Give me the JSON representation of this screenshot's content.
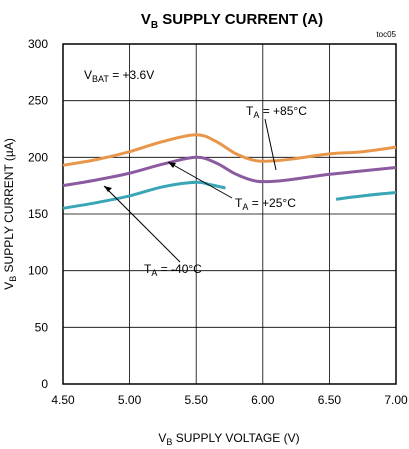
{
  "chart_data": {
    "type": "line",
    "title": {
      "main": "V",
      "sub": "B",
      "rest": " SUPPLY CURRENT (A)"
    },
    "corner_label": "toc05",
    "xlabel": {
      "main": "V",
      "sub": "B",
      "rest": " SUPPLY VOLTAGE (V)"
    },
    "ylabel": {
      "main": "V",
      "sub": "B",
      "rest": " SUPPLY CURRENT  (µA)"
    },
    "xlim": [
      4.5,
      7.0
    ],
    "ylim": [
      0,
      300
    ],
    "xticks": [
      "4.50",
      "5.00",
      "5.50",
      "6.00",
      "6.50",
      "7.00"
    ],
    "yticks": [
      "0",
      "50",
      "100",
      "150",
      "200",
      "250",
      "300"
    ],
    "grid": true,
    "condition": {
      "main": "V",
      "sub": "BAT",
      "rest": " = +3.6V"
    },
    "series": [
      {
        "color": "#e8974a",
        "label": {
          "main": "T",
          "sub": "A",
          "rest": " = +85°C"
        },
        "x": [
          4.5,
          4.75,
          5.0,
          5.25,
          5.5,
          5.65,
          5.8,
          5.95,
          6.1,
          6.25,
          6.5,
          6.75,
          7.0
        ],
        "y": [
          193,
          198,
          205,
          214,
          220,
          214,
          203,
          197,
          197,
          199,
          203,
          205,
          209
        ]
      },
      {
        "color": "#8c5aa0",
        "label": {
          "main": "T",
          "sub": "A",
          "rest": " = +25°C"
        },
        "x": [
          4.5,
          4.75,
          5.0,
          5.25,
          5.5,
          5.65,
          5.8,
          5.95,
          6.1,
          6.25,
          6.5,
          6.75,
          7.0
        ],
        "y": [
          175,
          180,
          186,
          194,
          200,
          195,
          185,
          179,
          179,
          181,
          185,
          188,
          191
        ]
      },
      {
        "color": "#3aa5b5",
        "label": {
          "main": "T",
          "sub": "A",
          "rest": " = -40°C"
        },
        "segments": [
          {
            "x": [
              4.5,
              4.75,
              5.0,
              5.25,
              5.5,
              5.6,
              5.72
            ],
            "y": [
              155,
              160,
              166,
              174,
              178,
              176,
              173
            ]
          },
          {
            "x": [
              6.55,
              6.75,
              7.0
            ],
            "y": [
              163,
              166,
              169
            ]
          }
        ]
      }
    ]
  }
}
